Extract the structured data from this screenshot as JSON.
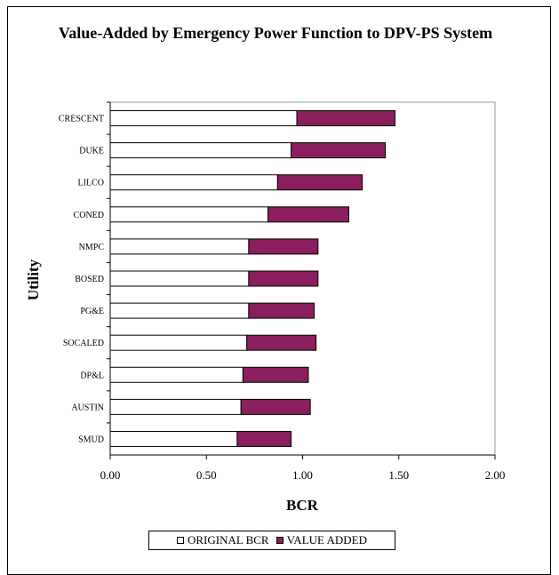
{
  "colors": {
    "original": "#ffffff",
    "value_added": "#8b1f5d",
    "outline": "#000000"
  },
  "chart_data": {
    "type": "bar",
    "orientation": "horizontal",
    "stacked": true,
    "title": "Value-Added by Emergency Power Function to DPV-PS System",
    "xlabel": "BCR",
    "ylabel": "Utility",
    "xlim": [
      0,
      2
    ],
    "x_ticks": [
      "0.00",
      "0.50",
      "1.00",
      "1.50",
      "2.00"
    ],
    "grid": false,
    "legend_position": "bottom",
    "categories": [
      "CRESCENT",
      "DUKE",
      "LILCO",
      "CONED",
      "NMPC",
      "BOSED",
      "PG&E",
      "SOCALED",
      "DP&L",
      "AUSTIN",
      "SMUD"
    ],
    "series": [
      {
        "name": "ORIGINAL BCR",
        "values": [
          0.97,
          0.94,
          0.87,
          0.82,
          0.72,
          0.72,
          0.72,
          0.71,
          0.69,
          0.68,
          0.66
        ]
      },
      {
        "name": "VALUE ADDED",
        "values": [
          0.51,
          0.49,
          0.44,
          0.42,
          0.36,
          0.36,
          0.34,
          0.36,
          0.34,
          0.36,
          0.28
        ]
      }
    ]
  }
}
